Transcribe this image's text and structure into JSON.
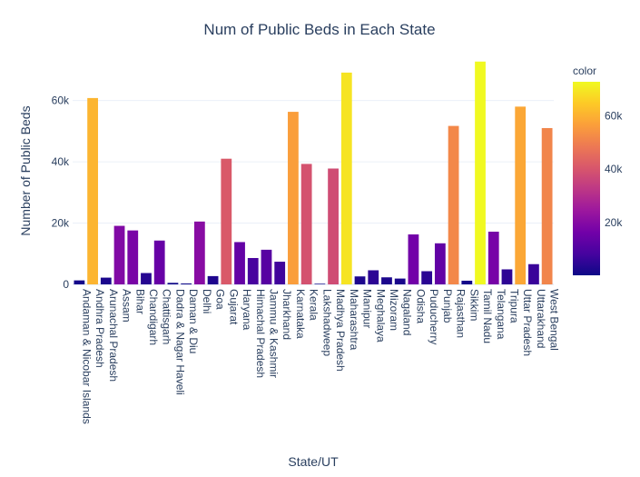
{
  "chart_data": {
    "type": "bar",
    "title": "Num of Public Beds in Each State",
    "xlabel": "State/UT",
    "ylabel": "Number of Public Beds",
    "ylim": [
      0,
      75000
    ],
    "yticks": [
      0,
      20000,
      40000,
      60000
    ],
    "ytick_labels": [
      "0",
      "20k",
      "40k",
      "60k"
    ],
    "colorbar": {
      "title": "color",
      "range": [
        200,
        72700
      ],
      "ticks": [
        20000,
        40000,
        60000
      ],
      "tick_labels": [
        "20k",
        "40k",
        "60k"
      ],
      "colorscale": [
        "#0d0887",
        "#46039f",
        "#7201a8",
        "#9c179e",
        "#bd3786",
        "#d8576b",
        "#ed7953",
        "#fb9f3a",
        "#fdca26",
        "#f0f921"
      ]
    },
    "categories": [
      "Andaman & Nicobar Islands",
      "Andhra Pradesh",
      "Arunachal Pradesh",
      "Assam",
      "Bihar",
      "Chandigarh",
      "Chattisgarh",
      "Dadra & Nagar Haveli",
      "Daman & Diu",
      "Delhi",
      "Goa",
      "Gujarat",
      "Haryana",
      "Himachal Pradesh",
      "Jammu & Kashmir",
      "Jharkhand",
      "Karnataka",
      "Kerala",
      "Lakshadweep",
      "Madhya Pradesh",
      "Maharashtra",
      "Manipur",
      "Meghalaya",
      "Mizoram",
      "Nagaland",
      "Odisha",
      "Puducherry",
      "Punjab",
      "Rajasthan",
      "Sikkim",
      "Tamil Nadu",
      "Telangana",
      "Tripura",
      "Uttar Pradesh",
      "Uttarakhand",
      "West Bengal"
    ],
    "values": [
      1300,
      60800,
      2200,
      19100,
      17600,
      3700,
      14300,
      500,
      300,
      20500,
      2700,
      41000,
      13800,
      8600,
      11300,
      7400,
      56300,
      39300,
      200,
      37800,
      69100,
      2600,
      4600,
      2300,
      1900,
      16300,
      4300,
      13400,
      51700,
      1200,
      72700,
      17200,
      4900,
      58000,
      6600,
      51000
    ]
  }
}
